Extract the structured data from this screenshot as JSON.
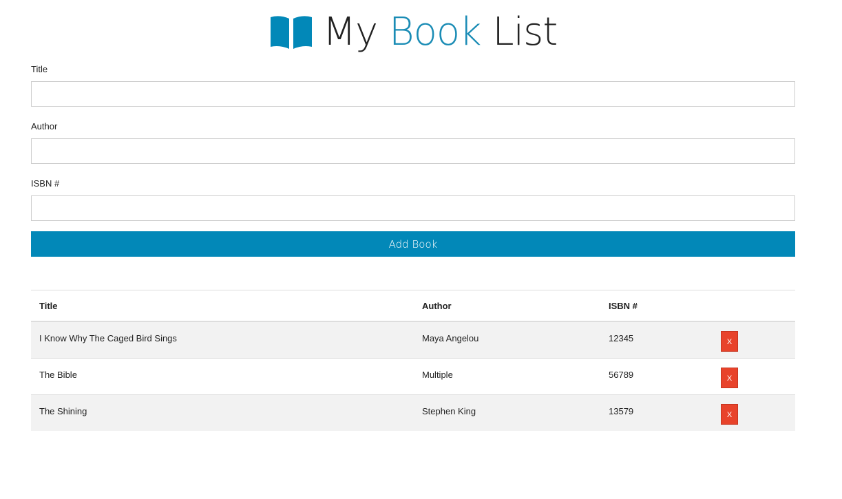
{
  "header": {
    "title_part1": "My",
    "title_part2": "Book",
    "title_part3": "List",
    "icon": "book-open-icon",
    "accent": "#1a8cb5"
  },
  "form": {
    "title_label": "Title",
    "author_label": "Author",
    "isbn_label": "ISBN #",
    "title_value": "",
    "author_value": "",
    "isbn_value": "",
    "submit_label": "Add Book",
    "button_color": "#0288b8"
  },
  "table": {
    "headers": [
      "Title",
      "Author",
      "ISBN #",
      ""
    ],
    "rows": [
      {
        "title": "I Know Why The Caged Bird Sings",
        "author": "Maya Angelou",
        "isbn": "12345",
        "delete": "X"
      },
      {
        "title": "The Bible",
        "author": "Multiple",
        "isbn": "56789",
        "delete": "X"
      },
      {
        "title": "The Shining",
        "author": "Stephen King",
        "isbn": "13579",
        "delete": "X"
      }
    ],
    "delete_color": "#e8432b"
  }
}
